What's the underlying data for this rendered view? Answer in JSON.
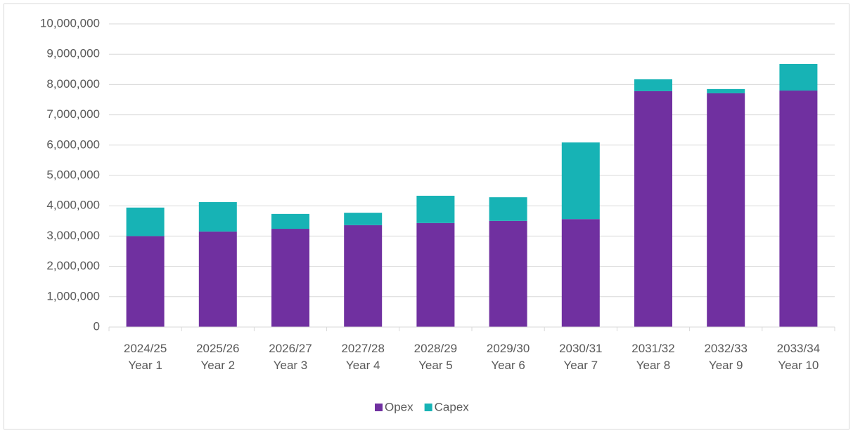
{
  "chart_data": {
    "type": "stacked_bar",
    "categories": [
      [
        "2024/25",
        "Year 1"
      ],
      [
        "2025/26",
        "Year 2"
      ],
      [
        "2026/27",
        "Year 3"
      ],
      [
        "2027/28",
        "Year 4"
      ],
      [
        "2028/29",
        "Year 5"
      ],
      [
        "2029/30",
        "Year 6"
      ],
      [
        "2030/31",
        "Year 7"
      ],
      [
        "2031/32",
        "Year 8"
      ],
      [
        "2032/33",
        "Year 9"
      ],
      [
        "2033/34",
        "Year 10"
      ]
    ],
    "series": [
      {
        "name": "Opex",
        "color": "#7030a0",
        "values": [
          3000000,
          3150000,
          3240000,
          3360000,
          3430000,
          3500000,
          3560000,
          7780000,
          7710000,
          7800000
        ]
      },
      {
        "name": "Capex",
        "color": "#17b3b5",
        "values": [
          940000,
          970000,
          490000,
          410000,
          900000,
          780000,
          2530000,
          390000,
          140000,
          880000
        ]
      }
    ],
    "ylim": [
      0,
      10000000
    ],
    "yticks": [
      0,
      {
        "value": 1000000,
        "label": "1,000,000"
      },
      {
        "value": 2000000,
        "label": "2,000,000"
      },
      {
        "value": 3000000,
        "label": "3,000,000"
      },
      {
        "value": 4000000,
        "label": "4,000,000"
      },
      {
        "value": 5000000,
        "label": "5,000,000"
      },
      {
        "value": 6000000,
        "label": "6,000,000"
      },
      {
        "value": 7000000,
        "label": "7,000,000"
      },
      {
        "value": 8000000,
        "label": "8,000,000"
      },
      {
        "value": 9000000,
        "label": "9,000,000"
      },
      {
        "value": 10000000,
        "label": "10,000,000"
      }
    ],
    "grid": true,
    "legend": "bottom"
  }
}
